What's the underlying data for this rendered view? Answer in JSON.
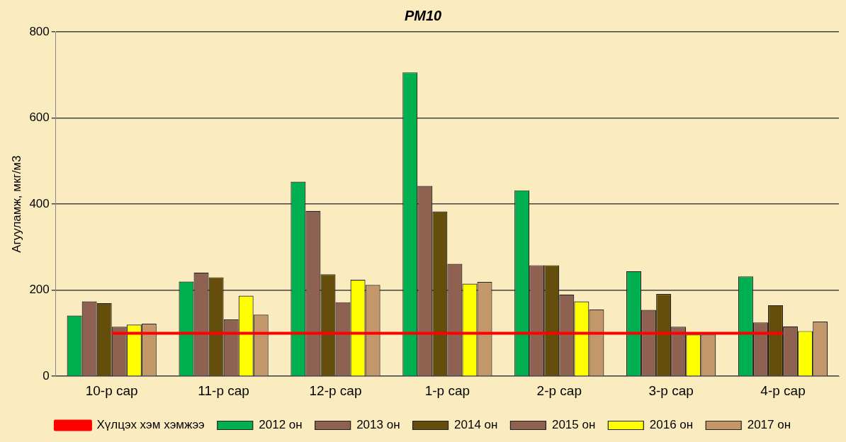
{
  "chart_data": {
    "type": "bar",
    "title": "PM10",
    "ylabel": "Агууламж, мкг/м3",
    "categories": [
      "10-р сар",
      "11-р сар",
      "12-р сар",
      "1-р сар",
      "2-р сар",
      "3-р сар",
      "4-р сар"
    ],
    "series": [
      {
        "name": "2012 он",
        "color": "#00b050",
        "values": [
          141,
          220,
          452,
          706,
          432,
          244,
          232
        ]
      },
      {
        "name": "2013 он",
        "color": "#8f6150",
        "values": [
          174,
          241,
          384,
          442,
          258,
          154,
          125
        ]
      },
      {
        "name": "2014 он",
        "color": "#654d0c",
        "values": [
          170,
          230,
          237,
          383,
          258,
          191,
          165
        ]
      },
      {
        "name": "2015 он",
        "color": "#8f6150",
        "values": [
          115,
          132,
          172,
          261,
          190,
          115,
          116
        ]
      },
      {
        "name": "2016 он",
        "color": "#ffff00",
        "values": [
          120,
          187,
          224,
          215,
          174,
          97,
          105
        ]
      },
      {
        "name": "2017 он",
        "color": "#c4976a",
        "values": [
          122,
          143,
          212,
          219,
          155,
          97,
          127
        ]
      },
      {
        "name": "Хүлцэх хэм хэмжээ",
        "type": "line",
        "color": "#ff0000",
        "marker": "none",
        "values": [
          100,
          100,
          100,
          100,
          100,
          100,
          100
        ]
      }
    ],
    "ylim": [
      0,
      800
    ],
    "yticks": [
      0,
      200,
      400,
      600,
      800
    ],
    "grid": "y",
    "legend": "bottom"
  }
}
